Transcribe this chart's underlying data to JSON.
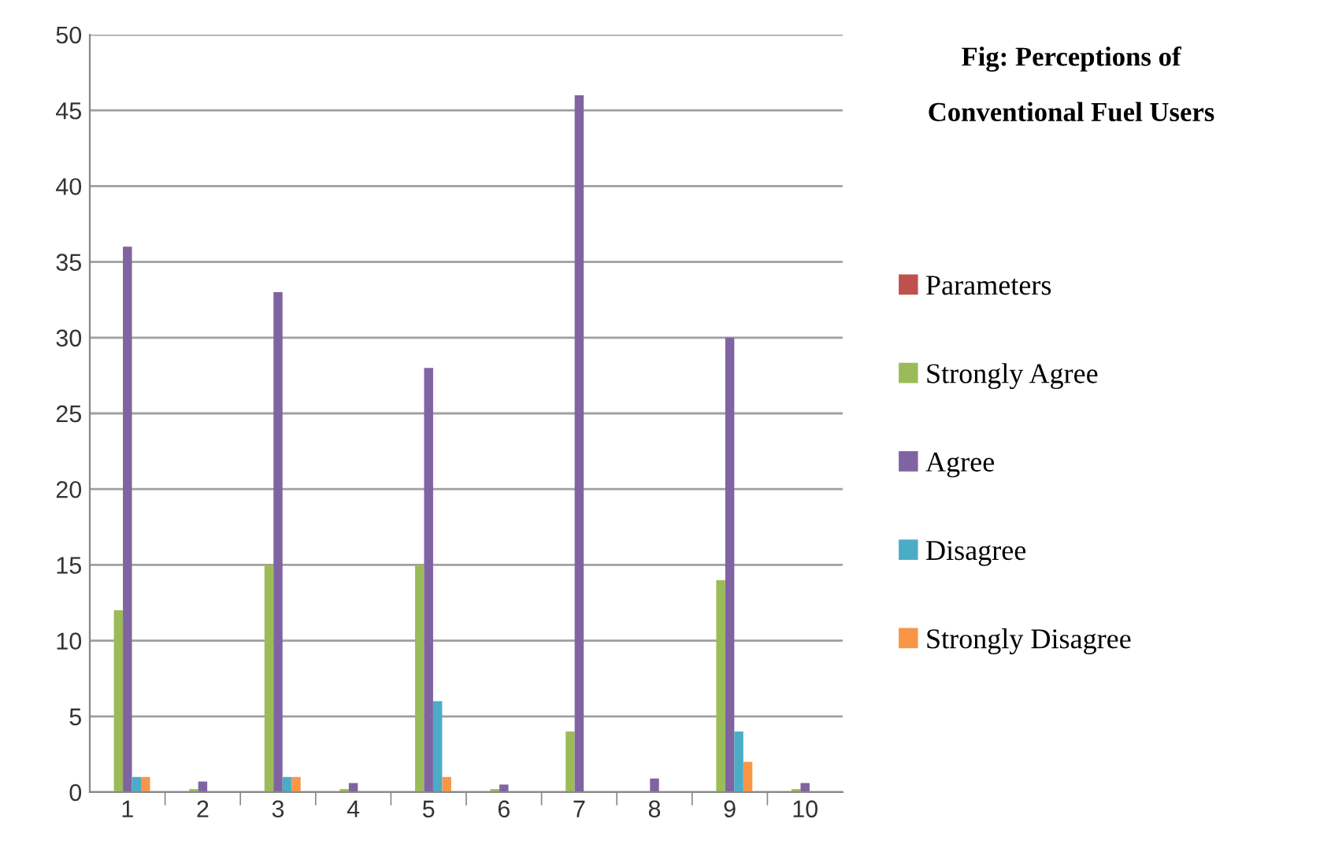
{
  "chart_data": {
    "type": "bar",
    "title": "Fig: Perceptions of\nConventional Fuel Users",
    "categories": [
      "1",
      "2",
      "3",
      "4",
      "5",
      "6",
      "7",
      "8",
      "9",
      "10"
    ],
    "series": [
      {
        "name": "Parameters",
        "color": "#c0504d",
        "values": [
          null,
          null,
          null,
          null,
          null,
          null,
          null,
          null,
          null,
          null
        ]
      },
      {
        "name": "Strongly Agree",
        "color": "#9bbb59",
        "values": [
          12,
          0.2,
          15,
          0.2,
          15,
          0.2,
          4,
          null,
          14,
          0.2
        ]
      },
      {
        "name": "Agree",
        "color": "#8064a2",
        "values": [
          36,
          0.7,
          33,
          0.6,
          28,
          0.5,
          46,
          0.9,
          30,
          0.6
        ]
      },
      {
        "name": "Disagree",
        "color": "#4bacc6",
        "values": [
          1,
          null,
          1,
          null,
          6,
          null,
          null,
          null,
          4,
          null
        ]
      },
      {
        "name": "Strongly Disagree",
        "color": "#f79646",
        "values": [
          1,
          null,
          1,
          null,
          1,
          null,
          null,
          null,
          2,
          null
        ]
      }
    ],
    "ylim": [
      0,
      50
    ],
    "yticks": [
      0,
      5,
      10,
      15,
      20,
      25,
      30,
      35,
      40,
      45,
      50
    ],
    "grid": "y",
    "legend": "right"
  }
}
